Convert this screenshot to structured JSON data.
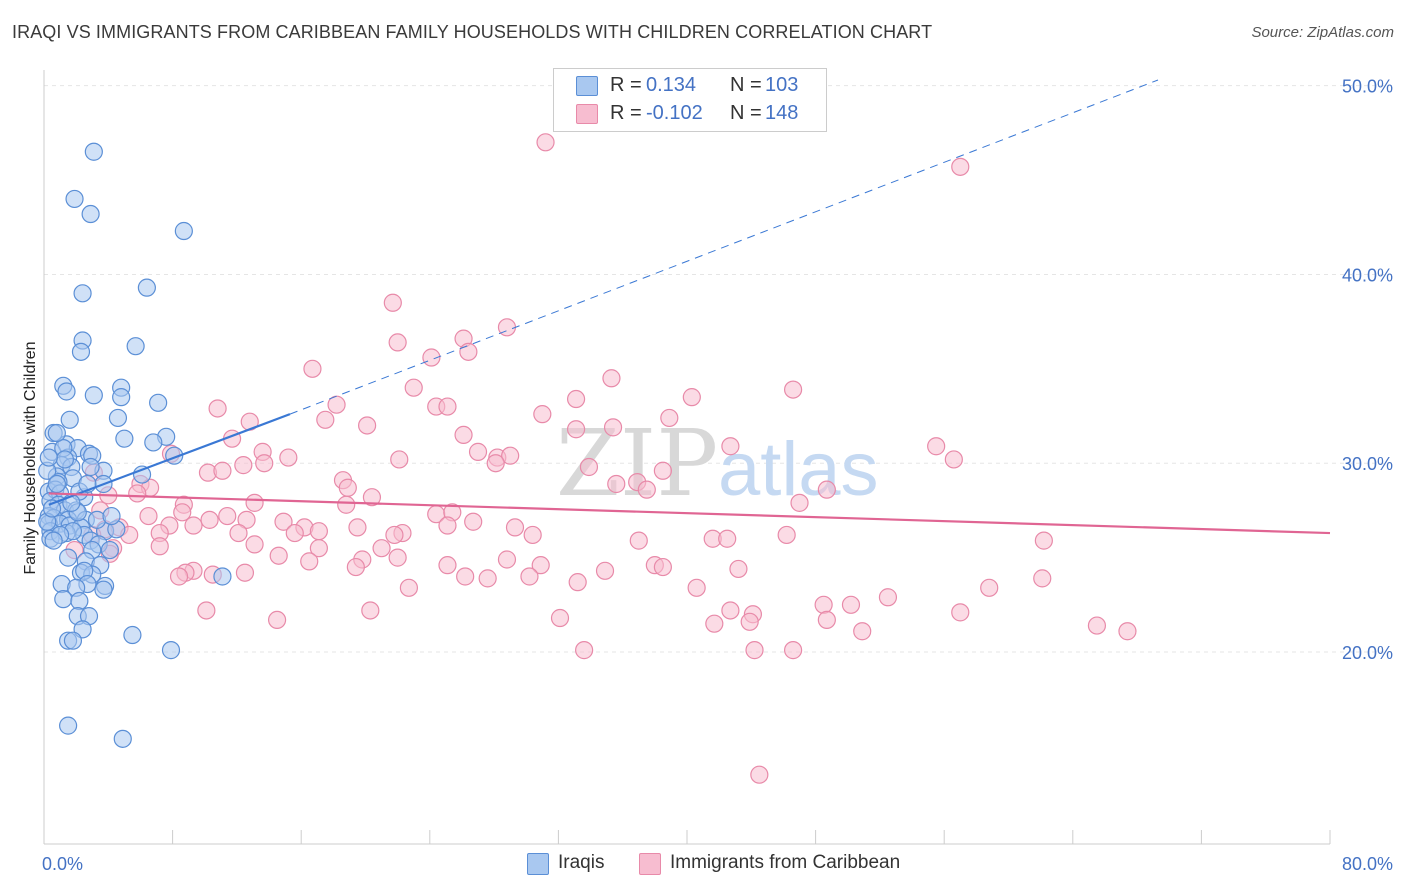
{
  "header": {
    "title": "IRAQI VS IMMIGRANTS FROM CARIBBEAN FAMILY HOUSEHOLDS WITH CHILDREN CORRELATION CHART",
    "source": "Source: ZipAtlas.com"
  },
  "watermark": {
    "zip": "ZIP",
    "atlas": "atlas"
  },
  "legend": {
    "rows": [
      {
        "r_label": "R =",
        "r_value": "0.134",
        "n_label": "N =",
        "n_value": "103"
      },
      {
        "r_label": "R =",
        "r_value": "-0.102",
        "n_label": "N =",
        "n_value": "148"
      }
    ]
  },
  "bottom_legend": {
    "series1": "Iraqis",
    "series2": "Immigrants from Caribbean"
  },
  "colors": {
    "blue_fill": "#a9c8f0",
    "blue_stroke": "#5b8fd6",
    "blue_line": "#3a78d4",
    "pink_fill": "#f7bdd0",
    "pink_stroke": "#e88aa9",
    "pink_line": "#e06593",
    "axis_label": "#4472c4",
    "grid": "#e5e5e5"
  },
  "chart_data": {
    "type": "scatter",
    "title": "IRAQI VS IMMIGRANTS FROM CARIBBEAN FAMILY HOUSEHOLDS WITH CHILDREN CORRELATION CHART",
    "xlabel": "",
    "ylabel": "Family Households with Children",
    "xlim": [
      0,
      80
    ],
    "ylim": [
      10,
      52
    ],
    "x_tick_labels": [
      "0.0%",
      "80.0%"
    ],
    "y_ticks": [
      20,
      30,
      40,
      50
    ],
    "y_tick_labels": [
      "20.0%",
      "30.0%",
      "40.0%",
      "50.0%"
    ],
    "series": [
      {
        "name": "Iraqis",
        "R": 0.134,
        "N": 103,
        "trend": {
          "x0": 0.3,
          "y0": 27.8,
          "x1": 15.3,
          "y1": 32.6,
          "dash_to_x": 69.3,
          "dash_to_y": 50.3
        },
        "points": [
          [
            3.1,
            46.5
          ],
          [
            1.9,
            44.0
          ],
          [
            2.9,
            43.2
          ],
          [
            8.7,
            42.3
          ],
          [
            6.4,
            39.3
          ],
          [
            2.4,
            39.0
          ],
          [
            2.4,
            36.5
          ],
          [
            5.7,
            36.2
          ],
          [
            2.3,
            35.9
          ],
          [
            1.2,
            34.1
          ],
          [
            4.8,
            34.0
          ],
          [
            1.4,
            33.8
          ],
          [
            3.1,
            33.6
          ],
          [
            4.8,
            33.5
          ],
          [
            7.1,
            33.2
          ],
          [
            1.6,
            32.3
          ],
          [
            4.6,
            32.4
          ],
          [
            0.6,
            31.6
          ],
          [
            5.0,
            31.3
          ],
          [
            7.6,
            31.4
          ],
          [
            1.4,
            31.0
          ],
          [
            2.1,
            30.8
          ],
          [
            6.8,
            31.1
          ],
          [
            0.5,
            30.6
          ],
          [
            2.8,
            30.5
          ],
          [
            1.5,
            30.3
          ],
          [
            3.0,
            30.4
          ],
          [
            8.1,
            30.4
          ],
          [
            1.1,
            29.9
          ],
          [
            1.7,
            29.8
          ],
          [
            3.7,
            29.6
          ],
          [
            6.1,
            29.4
          ],
          [
            0.8,
            29.3
          ],
          [
            1.8,
            29.2
          ],
          [
            0.9,
            29.0
          ],
          [
            3.7,
            28.9
          ],
          [
            0.3,
            28.5
          ],
          [
            0.7,
            28.6
          ],
          [
            1.0,
            28.4
          ],
          [
            2.5,
            28.2
          ],
          [
            0.4,
            28.0
          ],
          [
            0.9,
            27.8
          ],
          [
            1.3,
            27.5
          ],
          [
            2.0,
            27.5
          ],
          [
            0.3,
            27.2
          ],
          [
            0.6,
            27.1
          ],
          [
            1.5,
            27.0
          ],
          [
            2.6,
            27.0
          ],
          [
            0.3,
            26.8
          ],
          [
            1.0,
            26.8
          ],
          [
            1.6,
            26.7
          ],
          [
            2.3,
            26.6
          ],
          [
            3.8,
            26.4
          ],
          [
            0.4,
            26.4
          ],
          [
            1.4,
            26.3
          ],
          [
            2.5,
            26.2
          ],
          [
            4.5,
            26.5
          ],
          [
            2.9,
            25.9
          ],
          [
            3.4,
            25.7
          ],
          [
            4.1,
            25.4
          ],
          [
            3.0,
            25.4
          ],
          [
            1.5,
            25.0
          ],
          [
            2.6,
            24.8
          ],
          [
            3.5,
            24.6
          ],
          [
            2.3,
            24.2
          ],
          [
            3.0,
            24.1
          ],
          [
            2.5,
            24.3
          ],
          [
            11.1,
            24.0
          ],
          [
            1.1,
            23.6
          ],
          [
            2.7,
            23.6
          ],
          [
            3.8,
            23.5
          ],
          [
            2.0,
            23.4
          ],
          [
            3.7,
            23.3
          ],
          [
            1.2,
            22.8
          ],
          [
            2.2,
            22.7
          ],
          [
            2.1,
            21.9
          ],
          [
            2.8,
            21.9
          ],
          [
            2.4,
            21.2
          ],
          [
            1.5,
            20.6
          ],
          [
            1.8,
            20.6
          ],
          [
            5.5,
            20.9
          ],
          [
            7.9,
            20.1
          ],
          [
            1.5,
            16.1
          ],
          [
            4.9,
            15.4
          ],
          [
            0.2,
            26.9
          ],
          [
            0.5,
            27.6
          ],
          [
            0.2,
            29.6
          ],
          [
            1.2,
            30.8
          ],
          [
            2.2,
            28.5
          ],
          [
            0.4,
            26.0
          ],
          [
            1.8,
            26.4
          ],
          [
            3.3,
            27.0
          ],
          [
            0.8,
            28.9
          ],
          [
            1.3,
            30.2
          ],
          [
            2.1,
            27.4
          ],
          [
            0.3,
            30.3
          ],
          [
            0.8,
            31.6
          ],
          [
            1.7,
            27.9
          ],
          [
            2.9,
            29.8
          ],
          [
            1.0,
            26.2
          ],
          [
            2.7,
            28.9
          ],
          [
            0.6,
            25.9
          ],
          [
            4.2,
            27.2
          ]
        ]
      },
      {
        "name": "Immigrants from Caribbean",
        "R": -0.102,
        "N": 148,
        "trend": {
          "x0": 0.3,
          "y0": 28.4,
          "x1": 80.0,
          "y1": 26.3
        },
        "points": [
          [
            31.2,
            47.0
          ],
          [
            57.0,
            45.7
          ],
          [
            21.7,
            38.5
          ],
          [
            28.8,
            37.2
          ],
          [
            26.1,
            36.6
          ],
          [
            22.0,
            36.4
          ],
          [
            26.4,
            35.9
          ],
          [
            24.1,
            35.6
          ],
          [
            16.7,
            35.0
          ],
          [
            35.3,
            34.5
          ],
          [
            23.0,
            34.0
          ],
          [
            46.6,
            33.9
          ],
          [
            40.3,
            33.5
          ],
          [
            33.1,
            33.4
          ],
          [
            24.4,
            33.0
          ],
          [
            18.2,
            33.1
          ],
          [
            25.1,
            33.0
          ],
          [
            10.8,
            32.9
          ],
          [
            31.0,
            32.6
          ],
          [
            38.9,
            32.4
          ],
          [
            17.5,
            32.3
          ],
          [
            12.8,
            32.2
          ],
          [
            20.1,
            32.0
          ],
          [
            33.1,
            31.8
          ],
          [
            35.4,
            31.9
          ],
          [
            26.1,
            31.5
          ],
          [
            11.7,
            31.3
          ],
          [
            55.5,
            30.9
          ],
          [
            42.7,
            30.9
          ],
          [
            13.6,
            30.6
          ],
          [
            27.0,
            30.6
          ],
          [
            15.2,
            30.3
          ],
          [
            7.9,
            30.5
          ],
          [
            22.1,
            30.2
          ],
          [
            28.2,
            30.3
          ],
          [
            29.0,
            30.4
          ],
          [
            28.1,
            30.0
          ],
          [
            13.7,
            30.0
          ],
          [
            56.6,
            30.2
          ],
          [
            12.4,
            29.9
          ],
          [
            10.2,
            29.5
          ],
          [
            33.9,
            29.8
          ],
          [
            38.5,
            29.6
          ],
          [
            3.1,
            29.5
          ],
          [
            11.1,
            29.6
          ],
          [
            18.6,
            29.1
          ],
          [
            36.9,
            29.0
          ],
          [
            35.6,
            28.9
          ],
          [
            6.0,
            28.9
          ],
          [
            18.9,
            28.7
          ],
          [
            6.6,
            28.7
          ],
          [
            37.5,
            28.6
          ],
          [
            48.7,
            28.6
          ],
          [
            5.8,
            28.4
          ],
          [
            4.0,
            28.3
          ],
          [
            20.4,
            28.2
          ],
          [
            8.7,
            27.8
          ],
          [
            47.0,
            27.9
          ],
          [
            13.1,
            27.9
          ],
          [
            18.8,
            27.8
          ],
          [
            3.5,
            27.5
          ],
          [
            11.4,
            27.2
          ],
          [
            8.6,
            27.4
          ],
          [
            24.4,
            27.3
          ],
          [
            25.4,
            27.4
          ],
          [
            10.3,
            27.0
          ],
          [
            6.5,
            27.2
          ],
          [
            12.6,
            27.0
          ],
          [
            14.9,
            26.9
          ],
          [
            26.7,
            26.9
          ],
          [
            25.1,
            26.7
          ],
          [
            19.5,
            26.6
          ],
          [
            29.3,
            26.6
          ],
          [
            3.8,
            26.5
          ],
          [
            7.8,
            26.7
          ],
          [
            9.3,
            26.7
          ],
          [
            16.2,
            26.6
          ],
          [
            4.7,
            26.6
          ],
          [
            17.1,
            26.4
          ],
          [
            15.6,
            26.3
          ],
          [
            7.2,
            26.3
          ],
          [
            22.3,
            26.3
          ],
          [
            12.1,
            26.3
          ],
          [
            5.3,
            26.2
          ],
          [
            3.0,
            26.2
          ],
          [
            21.8,
            26.2
          ],
          [
            30.4,
            26.2
          ],
          [
            41.6,
            26.0
          ],
          [
            42.5,
            26.0
          ],
          [
            46.2,
            26.2
          ],
          [
            37.0,
            25.9
          ],
          [
            62.2,
            25.9
          ],
          [
            13.1,
            25.7
          ],
          [
            7.2,
            25.6
          ],
          [
            4.3,
            25.5
          ],
          [
            1.9,
            25.4
          ],
          [
            17.1,
            25.5
          ],
          [
            21.0,
            25.5
          ],
          [
            4.1,
            25.2
          ],
          [
            14.6,
            25.1
          ],
          [
            22.0,
            25.0
          ],
          [
            19.8,
            24.9
          ],
          [
            28.8,
            24.9
          ],
          [
            16.5,
            24.8
          ],
          [
            30.9,
            24.6
          ],
          [
            38.0,
            24.6
          ],
          [
            19.4,
            24.5
          ],
          [
            25.1,
            24.6
          ],
          [
            38.5,
            24.5
          ],
          [
            9.3,
            24.3
          ],
          [
            12.5,
            24.2
          ],
          [
            43.2,
            24.4
          ],
          [
            34.9,
            24.3
          ],
          [
            8.8,
            24.2
          ],
          [
            10.5,
            24.1
          ],
          [
            8.4,
            24.0
          ],
          [
            30.2,
            24.0
          ],
          [
            26.2,
            24.0
          ],
          [
            27.6,
            23.9
          ],
          [
            33.2,
            23.7
          ],
          [
            62.1,
            23.9
          ],
          [
            22.7,
            23.4
          ],
          [
            40.6,
            23.4
          ],
          [
            58.8,
            23.4
          ],
          [
            52.5,
            22.9
          ],
          [
            48.5,
            22.5
          ],
          [
            50.2,
            22.5
          ],
          [
            57.0,
            22.1
          ],
          [
            10.1,
            22.2
          ],
          [
            20.3,
            22.2
          ],
          [
            42.7,
            22.2
          ],
          [
            44.1,
            22.0
          ],
          [
            32.1,
            21.8
          ],
          [
            48.7,
            21.7
          ],
          [
            43.9,
            21.6
          ],
          [
            14.5,
            21.7
          ],
          [
            41.7,
            21.5
          ],
          [
            65.5,
            21.4
          ],
          [
            50.9,
            21.1
          ],
          [
            67.4,
            21.1
          ],
          [
            33.6,
            20.1
          ],
          [
            44.2,
            20.1
          ],
          [
            46.6,
            20.1
          ],
          [
            44.5,
            13.5
          ]
        ]
      }
    ]
  }
}
